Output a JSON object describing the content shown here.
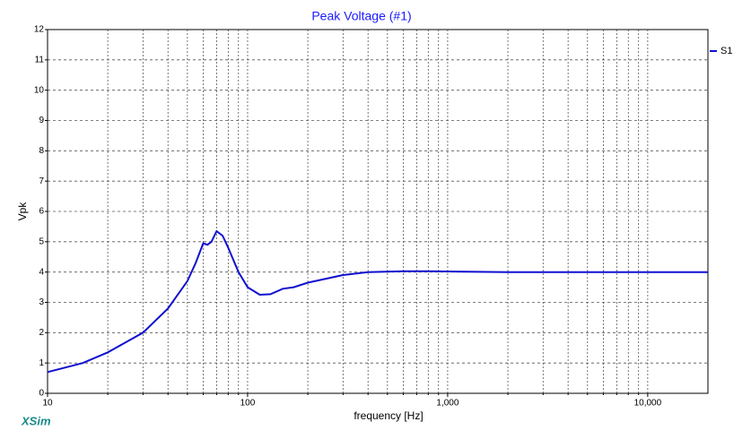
{
  "chart_data": {
    "type": "line",
    "title": "Peak Voltage (#1)",
    "x_label": "frequency [Hz]",
    "y_label": "Vpk",
    "brand": "XSim",
    "x_scale": "log",
    "x": [
      10,
      15,
      20,
      30,
      40,
      50,
      55,
      60,
      63,
      66,
      70,
      75,
      80,
      90,
      100,
      115,
      130,
      150,
      170,
      200,
      300,
      400,
      600,
      800,
      1000,
      2000,
      20000
    ],
    "series": [
      {
        "name": "S1",
        "color": "#1010d0",
        "values": [
          0.7,
          1.0,
          1.35,
          2.0,
          2.8,
          3.7,
          4.3,
          4.95,
          4.9,
          5.0,
          5.35,
          5.2,
          4.8,
          4.0,
          3.5,
          3.25,
          3.27,
          3.45,
          3.5,
          3.65,
          3.9,
          4.0,
          4.03,
          4.03,
          4.02,
          4.0,
          4.0
        ]
      }
    ],
    "xlim": [
      10,
      20000
    ],
    "xticks": [
      10,
      100,
      {
        "value": 1000,
        "label": "1,000"
      },
      {
        "value": 10000,
        "label": "10,000"
      }
    ],
    "xminorticks": [
      20,
      30,
      40,
      50,
      60,
      70,
      80,
      90,
      200,
      300,
      400,
      500,
      600,
      700,
      800,
      900,
      2000,
      3000,
      4000,
      5000,
      6000,
      7000,
      8000,
      9000
    ],
    "ylim": [
      0,
      12
    ],
    "yticks": [
      0,
      1,
      2,
      3,
      4,
      5,
      6,
      7,
      8,
      9,
      10,
      11,
      12
    ],
    "grid": true,
    "legend": "right"
  }
}
